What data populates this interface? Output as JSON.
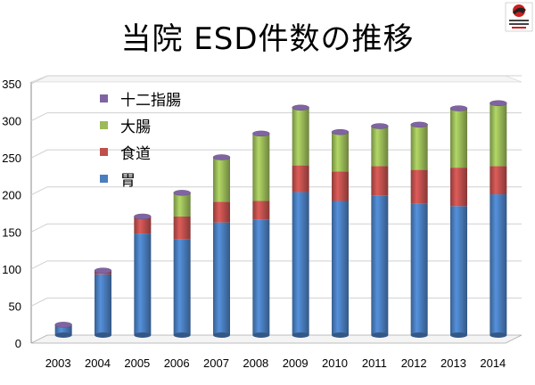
{
  "title": "当院 ESD件数の推移",
  "colors": {
    "stomach": "#4a7ebf",
    "esophagus": "#c0504d",
    "colon": "#9bbb59",
    "duodenum": "#8064a2"
  },
  "legend": [
    {
      "label": "十二指腸",
      "color": "#8064a2"
    },
    {
      "label": "大腸",
      "color": "#9bbb59"
    },
    {
      "label": "食道",
      "color": "#c0504d"
    },
    {
      "label": "胃",
      "color": "#4a7ebf"
    }
  ],
  "chart_data": {
    "type": "bar",
    "stacked": true,
    "categories": [
      "2003",
      "2004",
      "2005",
      "2006",
      "2007",
      "2008",
      "2009",
      "2010",
      "2011",
      "2012",
      "2013",
      "2014"
    ],
    "series": [
      {
        "name": "胃",
        "values": [
          13,
          82,
          137,
          129,
          152,
          156,
          193,
          181,
          188,
          177,
          174,
          190
        ]
      },
      {
        "name": "食道",
        "values": [
          1,
          5,
          23,
          31,
          28,
          25,
          36,
          40,
          40,
          46,
          52,
          38
        ]
      },
      {
        "name": "大腸",
        "values": [
          0,
          0,
          0,
          32,
          60,
          91,
          78,
          53,
          54,
          61,
          80,
          85
        ]
      },
      {
        "name": "十二指腸",
        "values": [
          0,
          0,
          0,
          0,
          0,
          0,
          0,
          0,
          0,
          0,
          0,
          0
        ]
      }
    ],
    "yticks": [
      "0",
      "50",
      "100",
      "150",
      "200",
      "250",
      "300",
      "350"
    ],
    "ylim": [
      0,
      350
    ],
    "xlabel": "",
    "ylabel": ""
  }
}
